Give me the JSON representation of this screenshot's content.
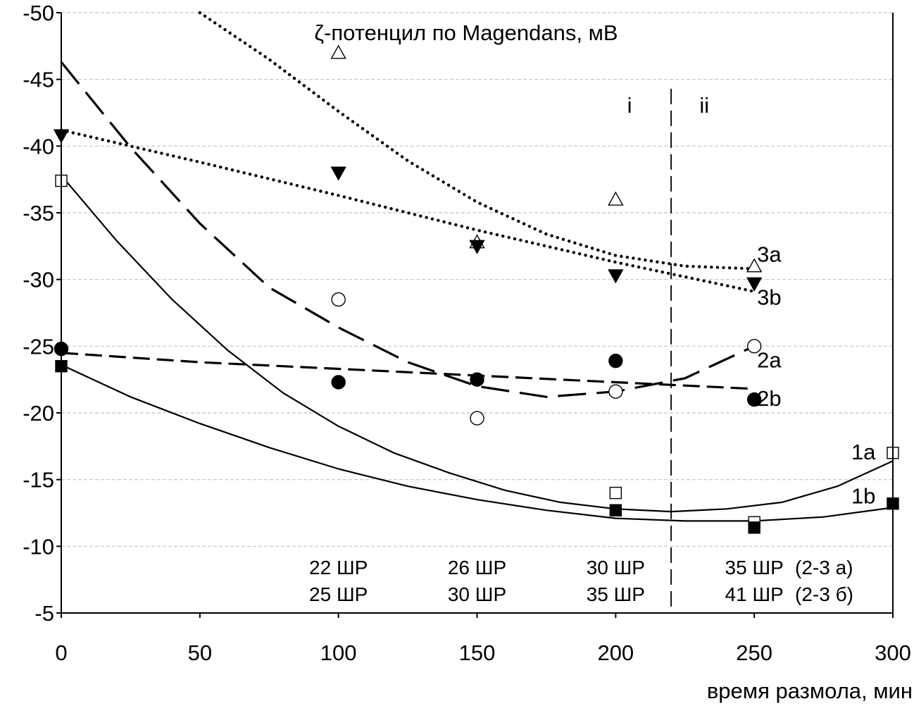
{
  "chart_data": {
    "type": "scatter",
    "title": "ζ-потенцил по Magendans, мВ",
    "xlabel": "время размола, мин",
    "ylabel": "",
    "xlim": [
      0,
      300
    ],
    "ylim": [
      -5,
      -50
    ],
    "y_inverted": true,
    "grid": true,
    "x_ticks": [
      0,
      50,
      100,
      150,
      200,
      250,
      300
    ],
    "y_ticks": [
      -50,
      -45,
      -40,
      -35,
      -30,
      -25,
      -20,
      -15,
      -10,
      -5
    ],
    "x_tick_labels": [
      "0",
      "50",
      "100",
      "150",
      "200",
      "250",
      "300"
    ],
    "y_tick_labels": [
      "-50",
      "-45",
      "-40",
      "-35",
      "-30",
      "-25",
      "-20",
      "-15",
      "-10",
      "-5"
    ],
    "divider_x": 220,
    "region_labels": [
      {
        "text": "i",
        "x": 205
      },
      {
        "text": "ii",
        "x": 232
      }
    ],
    "series": [
      {
        "name": "1a",
        "marker": "square-open",
        "x": [
          0,
          200,
          250,
          300
        ],
        "y": [
          -37.4,
          -14.0,
          -11.8,
          -17.0
        ]
      },
      {
        "name": "1b",
        "marker": "square-filled",
        "x": [
          0,
          200,
          250,
          300
        ],
        "y": [
          -23.5,
          -12.7,
          -11.4,
          -13.2
        ]
      },
      {
        "name": "2a",
        "marker": "circle-open",
        "x": [
          100,
          150,
          200,
          250
        ],
        "y": [
          -28.5,
          -19.6,
          -21.6,
          -25.0
        ]
      },
      {
        "name": "2b",
        "marker": "circle-filled",
        "x": [
          0,
          100,
          150,
          200,
          250
        ],
        "y": [
          -24.8,
          -22.3,
          -22.5,
          -23.9,
          -21.0
        ]
      },
      {
        "name": "3a",
        "marker": "triangle-up-open",
        "x": [
          100,
          150,
          200,
          250
        ],
        "y": [
          -47.0,
          -32.8,
          -36.0,
          -31.0
        ]
      },
      {
        "name": "3b",
        "marker": "triangle-down-filled",
        "x": [
          0,
          100,
          150,
          200,
          250
        ],
        "y": [
          -40.8,
          -38.0,
          -32.5,
          -30.3,
          -29.7
        ]
      }
    ],
    "trendlines": [
      {
        "series": "1a",
        "style": "solid",
        "x": [
          0,
          20,
          40,
          60,
          80,
          100,
          120,
          140,
          160,
          180,
          200,
          220,
          240,
          260,
          280,
          300
        ],
        "y": [
          -37.8,
          -32.9,
          -28.5,
          -24.7,
          -21.5,
          -19.0,
          -17.0,
          -15.5,
          -14.2,
          -13.3,
          -12.8,
          -12.6,
          -12.8,
          -13.3,
          -14.5,
          -16.4
        ]
      },
      {
        "series": "1b",
        "style": "solid",
        "x": [
          0,
          25,
          50,
          75,
          100,
          125,
          150,
          175,
          200,
          225,
          250,
          275,
          300
        ],
        "y": [
          -23.6,
          -21.2,
          -19.2,
          -17.4,
          -15.8,
          -14.5,
          -13.5,
          -12.7,
          -12.1,
          -11.9,
          -11.9,
          -12.2,
          -12.9
        ]
      },
      {
        "series": "2a",
        "style": "long-dash",
        "x": [
          0,
          25,
          50,
          75,
          100,
          125,
          150,
          175,
          200,
          225,
          250
        ],
        "y": [
          -46.3,
          -39.9,
          -34.2,
          -29.4,
          -26.4,
          -23.8,
          -22.0,
          -21.2,
          -21.6,
          -22.6,
          -25.0
        ]
      },
      {
        "series": "2b",
        "style": "dash",
        "x": [
          0,
          50,
          100,
          150,
          200,
          250
        ],
        "y": [
          -24.5,
          -23.8,
          -23.3,
          -22.8,
          -22.3,
          -21.8
        ]
      },
      {
        "series": "3a",
        "style": "dotted",
        "x": [
          50,
          75,
          100,
          125,
          150,
          175,
          200,
          225,
          250
        ],
        "y": [
          -50.0,
          -46.5,
          -42.6,
          -38.9,
          -35.8,
          -33.4,
          -31.8,
          -31.0,
          -30.8
        ]
      },
      {
        "series": "3b",
        "style": "dotted",
        "x": [
          0,
          50,
          100,
          150,
          200,
          250
        ],
        "y": [
          -41.2,
          -38.8,
          -36.3,
          -33.7,
          -31.3,
          -29.1
        ]
      }
    ],
    "series_labels": [
      {
        "text": "3a",
        "x": 251,
        "y": -31.9
      },
      {
        "text": "3b",
        "x": 251,
        "y": -28.7
      },
      {
        "text": "2a",
        "x": 251,
        "y": -24.0
      },
      {
        "text": "2b",
        "x": 251,
        "y": -21.1
      },
      {
        "text": "1a",
        "x": 285,
        "y": -17.1
      },
      {
        "text": "1b",
        "x": 285,
        "y": -13.8
      }
    ],
    "bead_annotations": [
      {
        "x": 100,
        "lines": [
          "22 ШР",
          "25 ШР"
        ]
      },
      {
        "x": 150,
        "lines": [
          "26 ШР",
          "30 ШР"
        ]
      },
      {
        "x": 200,
        "lines": [
          "30 ШР",
          "35 ШР"
        ]
      },
      {
        "x": 250,
        "lines": [
          "35 ШР",
          "41 ШР"
        ]
      }
    ],
    "bead_group_labels": [
      "(2-3 а)",
      "(2-3 б)"
    ]
  }
}
